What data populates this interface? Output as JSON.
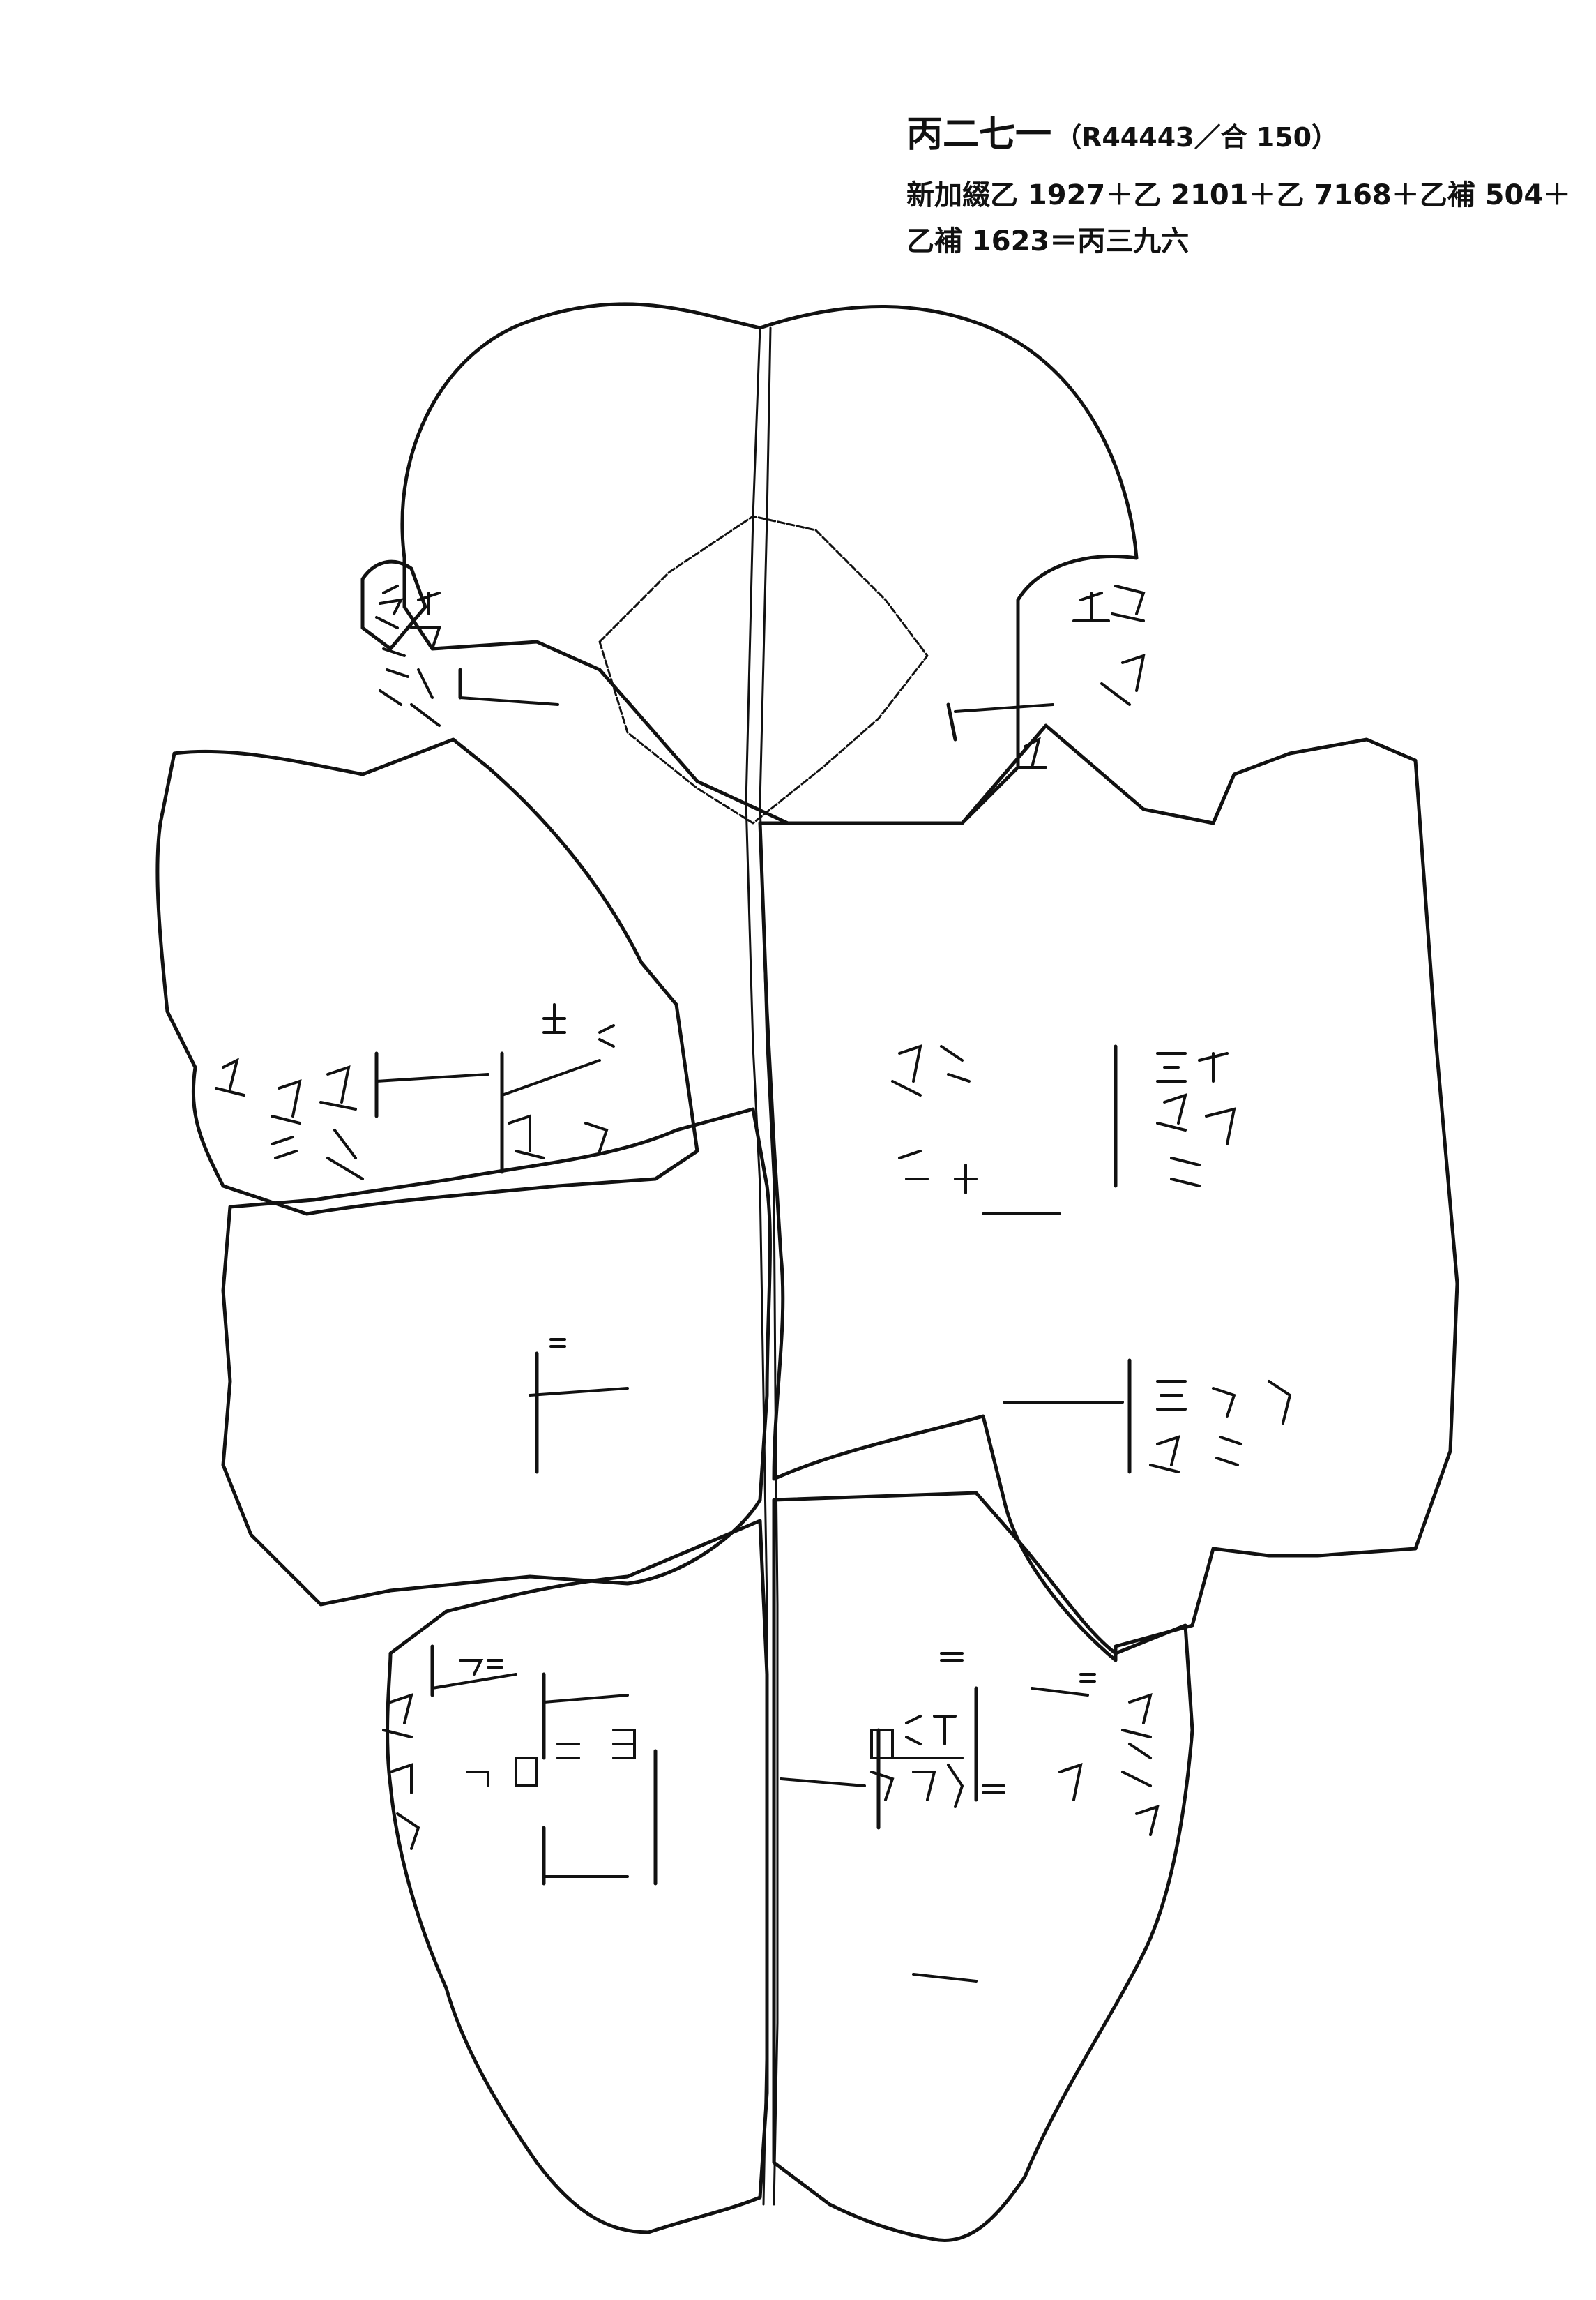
{
  "header": {
    "title": "丙二七一",
    "reference": "（R44443／合 150）",
    "join_line_1": "新加綴乙 1927＋乙 2101＋乙 7168＋乙補 504＋",
    "join_line_2": "乙補 1623＝丙三九六"
  },
  "colors": {
    "ink": "#111111",
    "paper": "#ffffff"
  }
}
